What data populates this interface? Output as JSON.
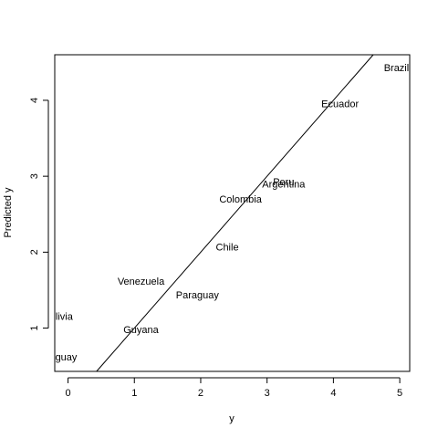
{
  "chart_data": {
    "type": "scatter",
    "title": "",
    "xlabel": "y",
    "ylabel": "Predicted y",
    "xlim": [
      -0.2,
      5.15
    ],
    "ylim": [
      0.43,
      4.6
    ],
    "xticks": [
      0,
      1,
      2,
      3,
      4,
      5
    ],
    "yticks": [
      1,
      2,
      3,
      4
    ],
    "grid": false,
    "points": [
      {
        "label": "Brazil",
        "x": 4.95,
        "y": 4.43
      },
      {
        "label": "Ecuador",
        "x": 4.1,
        "y": 3.96
      },
      {
        "label": "Peru",
        "x": 3.25,
        "y": 2.93
      },
      {
        "label": "Argentina",
        "x": 3.25,
        "y": 2.9
      },
      {
        "label": "Colombia",
        "x": 2.6,
        "y": 2.7
      },
      {
        "label": "Chile",
        "x": 2.4,
        "y": 2.07
      },
      {
        "label": "Venezuela",
        "x": 1.1,
        "y": 1.62
      },
      {
        "label": "Paraguay",
        "x": 1.95,
        "y": 1.44
      },
      {
        "label": "Bolivia",
        "x": -0.15,
        "y": 1.16
      },
      {
        "label": "Guyana",
        "x": 1.1,
        "y": 0.98
      },
      {
        "label": "Uruguay",
        "x": -0.15,
        "y": 0.62
      }
    ],
    "reference_line": {
      "intercept": 0,
      "slope": 1
    }
  }
}
